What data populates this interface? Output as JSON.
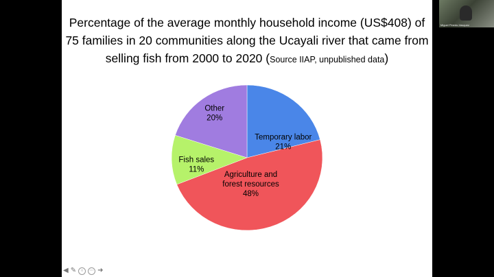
{
  "slide": {
    "title_main": "Percentage of the average monthly household income (US$408) of 75 families in 20 communities along the Ucayali river that came from selling fish from 2000 to 2020 (",
    "title_source": "Source IIAP, unpublished data",
    "title_end": ")"
  },
  "chart_data": {
    "type": "pie",
    "title": "Percentage of the average monthly household income (US$408) of 75 families in 20 communities along the Ucayali river that came from selling fish from 2000 to 2020 (Source IIAP, unpublished data)",
    "slices": [
      {
        "label": [
          "Temporary labor"
        ],
        "pct_label": "21%",
        "value": 21,
        "color": "#4a86e8"
      },
      {
        "label": [
          "Agriculture and",
          "forest resources"
        ],
        "pct_label": "48%",
        "value": 48,
        "color": "#f0555a"
      },
      {
        "label": [
          "Fish sales"
        ],
        "pct_label": "11%",
        "value": 11,
        "color": "#b6f26a"
      },
      {
        "label": [
          "Other"
        ],
        "pct_label": "20%",
        "value": 20,
        "color": "#a07ce0"
      }
    ],
    "legend": false,
    "start": "12 o'clock",
    "direction": "clockwise"
  },
  "participant": {
    "name": "Miguel Pinedo-Vasquez"
  },
  "nav_icons": [
    "arrow-left-icon",
    "pen-icon",
    "zoom-icon",
    "menu-icon",
    "arrow-right-icon"
  ]
}
